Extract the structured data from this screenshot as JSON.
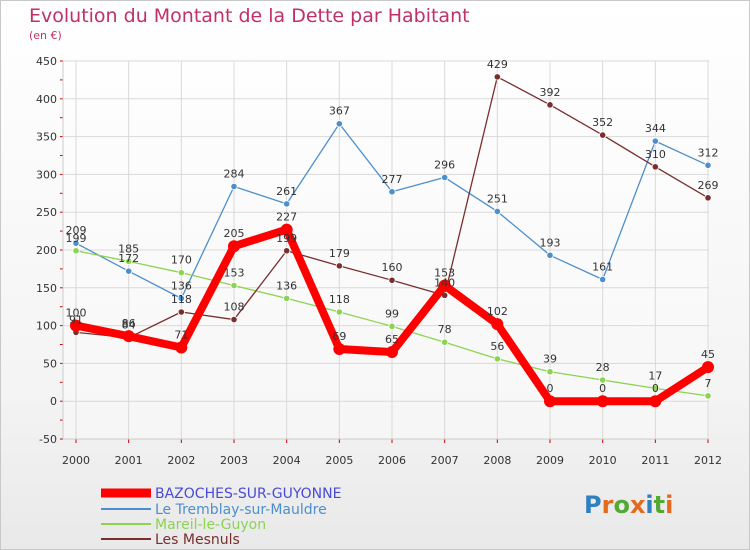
{
  "title": "Evolution du Montant de la Dette par Habitant",
  "unit": "(en €)",
  "logo": {
    "text": "Proxiti",
    "colors": [
      "#2f7fc1",
      "#e46a1b",
      "#55a834",
      "#e46a1b",
      "#2f7fc1",
      "#55a834",
      "#e46a1b"
    ]
  },
  "chart_data": {
    "type": "line",
    "x": [
      "2000",
      "2001",
      "2002",
      "2003",
      "2004",
      "2005",
      "2006",
      "2007",
      "2008",
      "2009",
      "2010",
      "2011",
      "2012"
    ],
    "ylim": [
      -50,
      450
    ],
    "yticks": [
      -50,
      0,
      50,
      100,
      150,
      200,
      250,
      300,
      350,
      400,
      450
    ],
    "grid": true,
    "legend_position": "bottom-left",
    "series": [
      {
        "name": "BAZOCHES-SUR-GUYONNE",
        "color": "#ff0000",
        "values": [
          100,
          86,
          71,
          205,
          227,
          69,
          65,
          153,
          102,
          0,
          0,
          0,
          45
        ]
      },
      {
        "name": "Le Tremblay-sur-Mauldre",
        "color": "#4d8fcc",
        "values": [
          209,
          172,
          136,
          284,
          261,
          367,
          277,
          296,
          251,
          193,
          161,
          344,
          312
        ]
      },
      {
        "name": "Mareil-le-Guyon",
        "color": "#8cd352",
        "values": [
          199,
          185,
          170,
          153,
          136,
          118,
          99,
          78,
          56,
          39,
          28,
          17,
          7
        ]
      },
      {
        "name": "Les Mesnuls",
        "color": "#7a2e2e",
        "values": [
          91,
          84,
          118,
          108,
          199,
          179,
          160,
          140,
          429,
          392,
          352,
          310,
          269
        ]
      }
    ]
  }
}
